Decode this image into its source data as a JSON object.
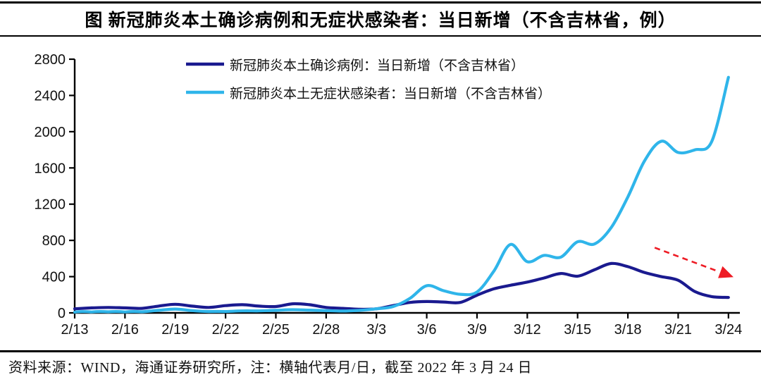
{
  "header": {
    "title": "图  新冠肺炎本土确诊病例和无症状感染者：当日新增（不含吉林省，例）"
  },
  "footer": {
    "text": "资料来源：WIND，海通证券研究所，注：横轴代表月/日，截至 2022 年 3 月 24 日"
  },
  "colors": {
    "confirmed_line": "#1a1a8f",
    "asymptomatic_line": "#2fb5ea",
    "arrow_red": "#ee1c25",
    "axis_black": "#000000",
    "text_black": "#111111"
  },
  "chart_data": {
    "type": "line",
    "title": "新冠肺炎本土确诊病例和无症状感染者：当日新增（不含吉林省，例）",
    "xlabel": "月/日",
    "ylabel": "",
    "ylim": [
      0,
      2800
    ],
    "ytick_step": 400,
    "ytick_labels": [
      "0",
      "400",
      "800",
      "1200",
      "1600",
      "2000",
      "2400",
      "2800"
    ],
    "xtick_labels": [
      "2/13",
      "2/16",
      "2/19",
      "2/22",
      "2/25",
      "2/28",
      "3/3",
      "3/6",
      "3/9",
      "3/12",
      "3/15",
      "3/18",
      "3/21",
      "3/24"
    ],
    "xtick_every_days": 3,
    "grid": false,
    "legend_position": "top-inside",
    "x": [
      "2/13",
      "2/14",
      "2/15",
      "2/16",
      "2/17",
      "2/18",
      "2/19",
      "2/20",
      "2/21",
      "2/22",
      "2/23",
      "2/24",
      "2/25",
      "2/26",
      "2/27",
      "2/28",
      "3/1",
      "3/2",
      "3/3",
      "3/4",
      "3/5",
      "3/6",
      "3/7",
      "3/8",
      "3/9",
      "3/10",
      "3/11",
      "3/12",
      "3/13",
      "3/14",
      "3/15",
      "3/16",
      "3/17",
      "3/18",
      "3/19",
      "3/20",
      "3/21",
      "3/22",
      "3/23",
      "3/24"
    ],
    "series": [
      {
        "name": "新冠肺炎本土确诊病例：当日新增（不含吉林省）",
        "color": "#1a1a8f",
        "values": [
          45,
          55,
          60,
          55,
          50,
          75,
          95,
          75,
          60,
          80,
          90,
          75,
          70,
          100,
          90,
          60,
          50,
          40,
          45,
          80,
          115,
          125,
          120,
          115,
          195,
          265,
          305,
          340,
          385,
          435,
          405,
          475,
          545,
          510,
          445,
          400,
          360,
          235,
          180,
          170
        ]
      },
      {
        "name": "新冠肺炎本土无症状感染者：当日新增（不含吉林省）",
        "color": "#2fb5ea",
        "values": [
          8,
          10,
          12,
          10,
          12,
          28,
          42,
          25,
          15,
          15,
          22,
          22,
          28,
          35,
          30,
          25,
          20,
          28,
          45,
          70,
          160,
          300,
          245,
          205,
          230,
          460,
          755,
          565,
          635,
          615,
          785,
          760,
          940,
          1280,
          1680,
          1895,
          1770,
          1800,
          1890,
          2600
        ]
      }
    ],
    "annotations": {
      "trend_arrow": {
        "style": "dashed-red-arrow",
        "from_day_index": 34.6,
        "from_value": 720,
        "to_day_index": 39.3,
        "to_value": 395
      }
    }
  }
}
